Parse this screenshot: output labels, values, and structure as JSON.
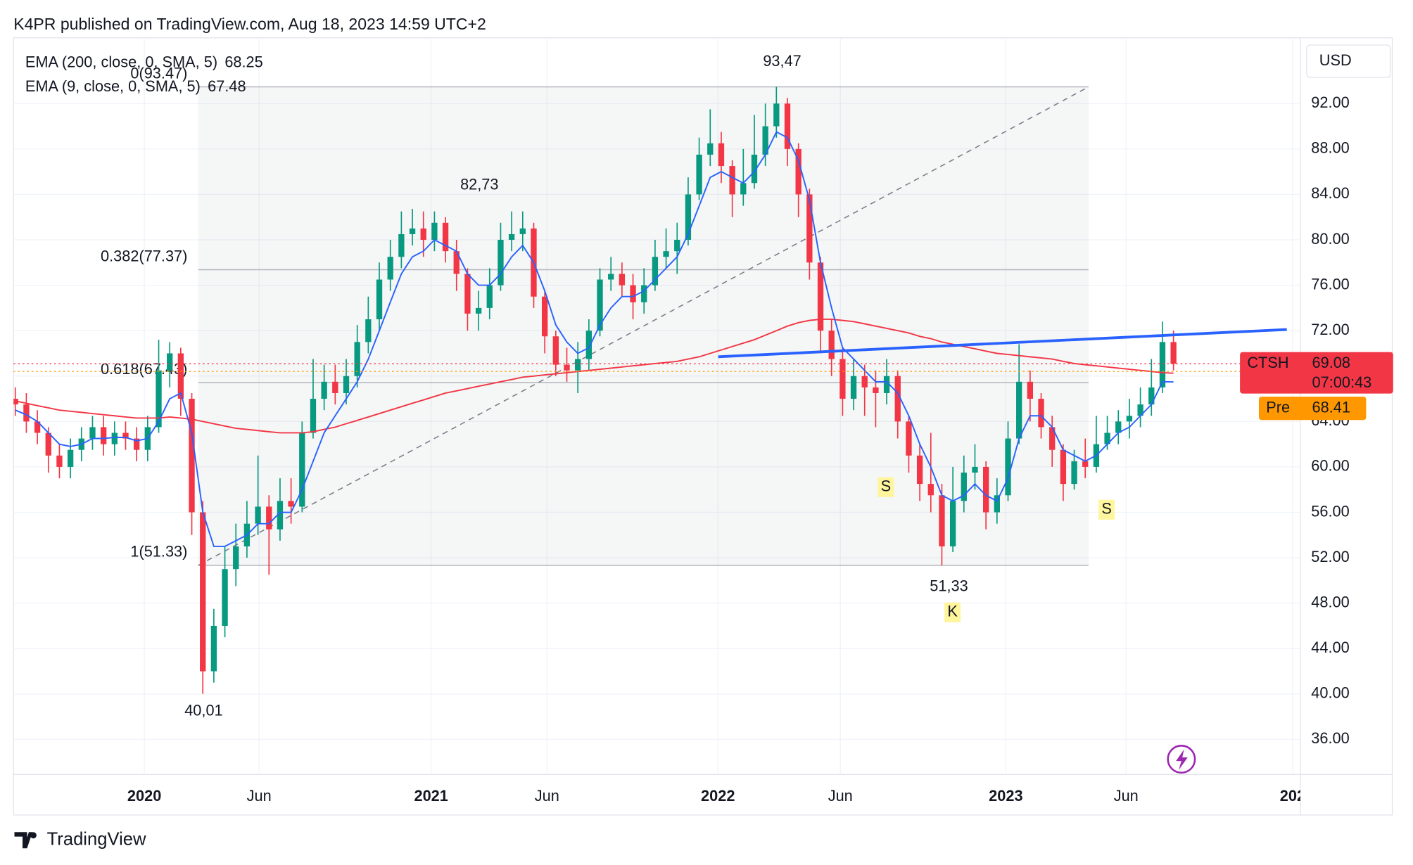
{
  "header": "K4PR published on TradingView.com, Aug 18, 2023 14:59 UTC+2",
  "footer": "TradingView",
  "chart_data": {
    "type": "candlestick",
    "currency": "USD",
    "up_color": "#089981",
    "down_color": "#f23645",
    "open": [
      66,
      65.5,
      64,
      63,
      61,
      60,
      61.5,
      62.5,
      63.5,
      62,
      63,
      62.5,
      61.5,
      63.5,
      68.5,
      70,
      66,
      56,
      42,
      46,
      51,
      53,
      55,
      56.5,
      54.5,
      57,
      56.5,
      63,
      66,
      67.5,
      66.5,
      68,
      71,
      73,
      76.5,
      78.5,
      80.5,
      81,
      80,
      81.5,
      79,
      77,
      73.5,
      74,
      76,
      80,
      80.5,
      81,
      75,
      71.5,
      69,
      68.5,
      69.5,
      72,
      76.5,
      77,
      76,
      74.5,
      76,
      78.5,
      79,
      80,
      84,
      87.5,
      88.5,
      86.5,
      84,
      85,
      87.5,
      90,
      92,
      88,
      84,
      78,
      72,
      69.5,
      66,
      68,
      67,
      66.5,
      68,
      64,
      61,
      58.5,
      57.5,
      53,
      57,
      59.5,
      60,
      56,
      57.5,
      62.5,
      67.5,
      66,
      63.5,
      61.5,
      58.5,
      60.5,
      60,
      62,
      63,
      64,
      64.5,
      65.5,
      67,
      71
    ],
    "high": [
      67,
      66.5,
      65,
      63.5,
      62,
      62.5,
      63.5,
      64.5,
      64.5,
      64,
      64,
      63.5,
      64.5,
      71.2,
      71,
      70.5,
      66.5,
      57,
      47.5,
      53,
      55,
      57,
      61,
      57.5,
      59,
      59,
      64,
      69.5,
      69,
      69,
      69.5,
      72.5,
      75,
      78,
      80,
      82.5,
      82.73,
      82.5,
      82.5,
      82,
      80,
      77.5,
      75.5,
      77.5,
      81.5,
      82.5,
      82.5,
      81.5,
      75.5,
      72,
      70.5,
      71,
      73,
      77.5,
      78.5,
      78,
      77,
      77.5,
      80,
      81,
      81.5,
      85.5,
      89,
      91.5,
      89.5,
      87,
      88,
      91,
      92,
      93.47,
      92.5,
      88.5,
      84.5,
      78.5,
      73,
      70.5,
      69.5,
      69,
      68.5,
      69.5,
      68.5,
      64.5,
      62,
      63,
      58.5,
      60,
      61,
      62,
      60.5,
      59,
      64,
      70.8,
      68.5,
      66.5,
      64.5,
      62,
      61.5,
      62.5,
      64.5,
      64.5,
      65,
      66,
      67,
      69.5,
      72.8,
      72
    ],
    "low": [
      64.5,
      63,
      62,
      59.5,
      59,
      59,
      60.5,
      61.5,
      61,
      61,
      61.5,
      60.5,
      60.5,
      63,
      67,
      64.5,
      54,
      40.01,
      41,
      45,
      49.5,
      52,
      54,
      50.5,
      53.5,
      55,
      56,
      62.5,
      65,
      65.5,
      65.5,
      67,
      70,
      72,
      75.5,
      77.5,
      79.5,
      78.5,
      79,
      78,
      75.5,
      72,
      72,
      73,
      75.5,
      79,
      79,
      74,
      70,
      68,
      67.5,
      66.5,
      68.5,
      71.5,
      75.5,
      75,
      73,
      73.5,
      75.5,
      77.5,
      77,
      79.5,
      83.5,
      86.5,
      85,
      82,
      83,
      84.5,
      86.5,
      89,
      86.5,
      82,
      76.5,
      70,
      68,
      64.5,
      65,
      64.5,
      63.5,
      65.5,
      62.5,
      59.5,
      57,
      56,
      51.33,
      52.5,
      56,
      58,
      54.5,
      55,
      57,
      62,
      64,
      62.5,
      60,
      57,
      58,
      59,
      59.5,
      61.5,
      62,
      62.5,
      63.5,
      64.5,
      66.5,
      68.5
    ],
    "close": [
      65.5,
      64,
      63,
      61,
      60,
      61.5,
      62.5,
      63.5,
      62,
      63,
      62.5,
      61.5,
      63.5,
      68.5,
      70,
      66,
      56,
      42,
      46,
      51,
      53,
      55,
      56.5,
      54.5,
      57,
      56.5,
      63,
      66,
      67.5,
      66.5,
      68,
      71,
      73,
      76.5,
      78.5,
      80.5,
      81,
      80,
      81.5,
      79,
      77,
      73.5,
      74,
      76,
      80,
      80.5,
      81,
      75,
      71.5,
      69,
      68.5,
      69.5,
      72,
      76.5,
      77,
      76,
      74.5,
      76,
      78.5,
      79,
      80,
      84,
      87.5,
      88.5,
      86.5,
      84,
      85,
      87.5,
      90,
      92,
      88,
      84,
      78,
      72,
      69.5,
      66,
      68,
      67,
      66.5,
      68,
      64,
      61,
      58.5,
      57.5,
      53,
      57,
      59.5,
      60,
      56,
      57.5,
      62.5,
      67.5,
      66,
      63.5,
      61.5,
      58.5,
      60.5,
      60,
      62,
      63,
      64,
      64.5,
      65.5,
      67,
      71,
      69.08
    ],
    "series": [
      {
        "name": "EMA (200, close, 0, SMA, 5)",
        "color": "#f23645",
        "last": 68.25,
        "values": [
          65.8,
          65.6,
          65.4,
          65.2,
          65.0,
          64.9,
          64.8,
          64.7,
          64.6,
          64.5,
          64.4,
          64.3,
          64.3,
          64.3,
          64.4,
          64.3,
          64.2,
          64.0,
          63.8,
          63.6,
          63.4,
          63.3,
          63.2,
          63.1,
          63.0,
          63.0,
          63.0,
          63.1,
          63.3,
          63.5,
          63.8,
          64.1,
          64.4,
          64.7,
          65.0,
          65.3,
          65.6,
          65.9,
          66.2,
          66.5,
          66.7,
          66.9,
          67.1,
          67.3,
          67.5,
          67.7,
          67.9,
          68.0,
          68.1,
          68.2,
          68.3,
          68.4,
          68.5,
          68.6,
          68.7,
          68.8,
          68.9,
          69.0,
          69.1,
          69.2,
          69.3,
          69.5,
          69.7,
          70.0,
          70.3,
          70.6,
          70.9,
          71.2,
          71.6,
          72.0,
          72.4,
          72.7,
          72.9,
          73.0,
          73.0,
          72.9,
          72.8,
          72.6,
          72.4,
          72.2,
          72.0,
          71.8,
          71.5,
          71.3,
          71.0,
          70.8,
          70.6,
          70.4,
          70.2,
          70.0,
          69.9,
          69.8,
          69.7,
          69.6,
          69.5,
          69.3,
          69.1,
          69.0,
          68.9,
          68.8,
          68.7,
          68.6,
          68.5,
          68.4,
          68.3,
          68.25
        ]
      },
      {
        "name": "EMA (9, close, 0, SMA, 5)",
        "color": "#2962ff",
        "last": 67.48,
        "values": [
          65,
          64.6,
          64,
          63,
          62,
          61.8,
          62,
          62.5,
          62.5,
          62.6,
          62.6,
          62.3,
          62.5,
          64,
          66,
          66.5,
          63,
          56,
          53,
          53,
          53.5,
          54,
          55,
          55,
          56,
          56,
          58,
          60.5,
          63,
          64.5,
          66,
          67.5,
          69.5,
          72,
          74.5,
          77,
          78.5,
          79,
          80,
          79.5,
          79,
          77,
          76,
          76,
          77,
          78.5,
          79.5,
          78,
          75.5,
          72.5,
          71,
          70,
          70.5,
          72.5,
          74,
          75,
          75,
          75.5,
          76.5,
          77.5,
          78.5,
          80.5,
          83,
          85.5,
          86,
          85.5,
          85,
          86,
          87.5,
          89.5,
          89,
          87,
          83.5,
          78,
          74,
          70.5,
          69.5,
          68.5,
          67.5,
          67.5,
          66.5,
          64.5,
          62,
          60,
          57.5,
          57,
          57.5,
          58.5,
          57.5,
          57,
          59,
          62.5,
          64.5,
          64.5,
          63.5,
          61.5,
          61,
          60.5,
          61,
          62,
          63,
          63.5,
          64.5,
          65.5,
          67.5,
          67.48
        ]
      }
    ],
    "xlim": [
      -0.16,
      116.5
    ],
    "xticks": [
      {
        "value": 11.7,
        "label": "2020"
      },
      {
        "value": 22.1,
        "label": "Jun"
      },
      {
        "value": 37.7,
        "label": "2021"
      },
      {
        "value": 48.2,
        "label": "Jun"
      },
      {
        "value": 63.7,
        "label": "2022"
      },
      {
        "value": 74.8,
        "label": "Jun"
      },
      {
        "value": 89.8,
        "label": "2023"
      },
      {
        "value": 100.7,
        "label": "Jun"
      },
      {
        "value": 115.8,
        "label": "202"
      }
    ],
    "ylim": [
      32.91,
      97.79
    ],
    "yticks": [
      {
        "value": 36,
        "label": "36.00"
      },
      {
        "value": 40,
        "label": "40.00"
      },
      {
        "value": 44,
        "label": "44.00"
      },
      {
        "value": 48,
        "label": "48.00"
      },
      {
        "value": 52,
        "label": "52.00"
      },
      {
        "value": 56,
        "label": "56.00"
      },
      {
        "value": 60,
        "label": "60.00"
      },
      {
        "value": 64,
        "label": "64.00"
      },
      {
        "value": 68,
        "label": "68.00"
      },
      {
        "value": 72,
        "label": "72.00"
      },
      {
        "value": 76,
        "label": "76.00"
      },
      {
        "value": 80,
        "label": "80.00"
      },
      {
        "value": 84,
        "label": "84.00"
      },
      {
        "value": 88,
        "label": "88.00"
      },
      {
        "value": 92,
        "label": "92.00"
      }
    ],
    "grid": true,
    "fibonacci": [
      {
        "value": 93.47,
        "label": "0(93.47)"
      },
      {
        "value": 77.37,
        "label": "0.382(77.37)"
      },
      {
        "value": 67.43,
        "label": "0.618(67.43)"
      },
      {
        "value": 51.33,
        "label": "1(51.33)"
      }
    ],
    "trendline": {
      "values": [
        69.7,
        72.1
      ]
    },
    "last_price": {
      "symbol": "CTSH",
      "value": 69.08,
      "countdown": "07:00:43"
    },
    "premarket": {
      "label": "Pre",
      "value": 68.41
    },
    "annotations": [
      "93,47",
      "82,73",
      "40,01",
      "51,33",
      "S",
      "S",
      "K"
    ]
  }
}
